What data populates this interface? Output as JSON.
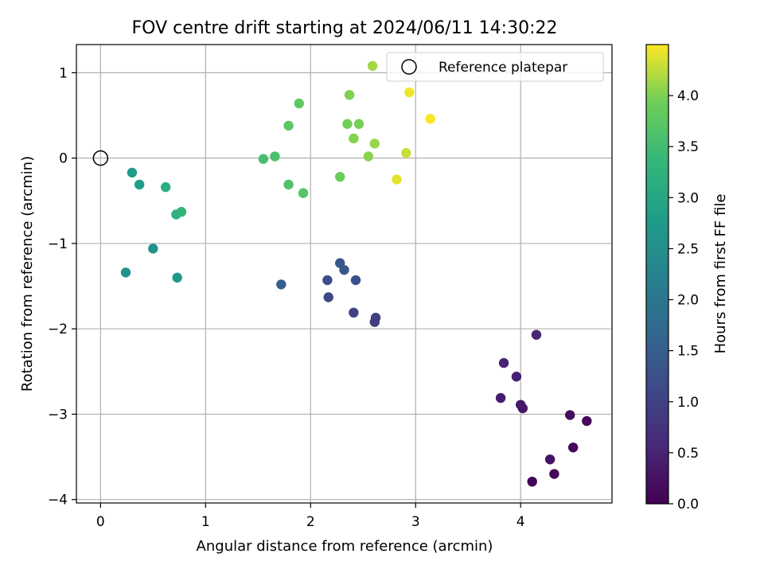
{
  "chart_data": {
    "type": "scatter",
    "title": "FOV centre drift starting at 2024/06/11 14:30:22",
    "xlabel": "Angular distance from reference (arcmin)",
    "ylabel": "Rotation from reference (arcmin)",
    "xlim": [
      -0.23,
      4.87
    ],
    "ylim": [
      -4.04,
      1.33
    ],
    "xticks": [
      0,
      1,
      2,
      3,
      4
    ],
    "yticks": [
      -4,
      -3,
      -2,
      -1,
      0,
      1
    ],
    "xtick_labels": [
      "0",
      "1",
      "2",
      "3",
      "4"
    ],
    "ytick_labels": [
      "−4",
      "−3",
      "−2",
      "−1",
      "0",
      "1"
    ],
    "grid": true,
    "legend": {
      "position": "top-right",
      "entries": [
        "Reference platepar"
      ]
    },
    "reference_point": {
      "x": 0,
      "y": 0,
      "marker": "open-circle"
    },
    "colormap": "viridis",
    "colorbar": {
      "label": "Hours from first FF file",
      "range": [
        0.0,
        4.5
      ],
      "ticks": [
        0.0,
        0.5,
        1.0,
        1.5,
        2.0,
        2.5,
        3.0,
        3.5,
        4.0
      ],
      "tick_labels": [
        "0.0",
        "0.5",
        "1.0",
        "1.5",
        "2.0",
        "2.5",
        "3.0",
        "3.5",
        "4.0"
      ]
    },
    "points": [
      {
        "x": 4.11,
        "y": -3.79,
        "hours": 0.05
      },
      {
        "x": 4.32,
        "y": -3.7,
        "hours": 0.08
      },
      {
        "x": 4.5,
        "y": -3.39,
        "hours": 0.1
      },
      {
        "x": 4.63,
        "y": -3.08,
        "hours": 0.13
      },
      {
        "x": 4.47,
        "y": -3.01,
        "hours": 0.17
      },
      {
        "x": 4.28,
        "y": -3.53,
        "hours": 0.27
      },
      {
        "x": 4.02,
        "y": -2.93,
        "hours": 0.3
      },
      {
        "x": 4.0,
        "y": -2.89,
        "hours": 0.35
      },
      {
        "x": 3.81,
        "y": -2.81,
        "hours": 0.4
      },
      {
        "x": 3.96,
        "y": -2.56,
        "hours": 0.45
      },
      {
        "x": 3.84,
        "y": -2.4,
        "hours": 0.5
      },
      {
        "x": 4.15,
        "y": -2.07,
        "hours": 0.55
      },
      {
        "x": 2.61,
        "y": -1.92,
        "hours": 0.9
      },
      {
        "x": 2.62,
        "y": -1.87,
        "hours": 0.95
      },
      {
        "x": 2.41,
        "y": -1.81,
        "hours": 1.0
      },
      {
        "x": 2.17,
        "y": -1.63,
        "hours": 1.1
      },
      {
        "x": 2.16,
        "y": -1.43,
        "hours": 1.2
      },
      {
        "x": 2.43,
        "y": -1.43,
        "hours": 1.25
      },
      {
        "x": 2.32,
        "y": -1.31,
        "hours": 1.35
      },
      {
        "x": 2.28,
        "y": -1.23,
        "hours": 1.4
      },
      {
        "x": 1.72,
        "y": -1.48,
        "hours": 1.55
      },
      {
        "x": 0.24,
        "y": -1.34,
        "hours": 2.55
      },
      {
        "x": 0.5,
        "y": -1.06,
        "hours": 2.6
      },
      {
        "x": 0.73,
        "y": -1.4,
        "hours": 2.7
      },
      {
        "x": 0.3,
        "y": -0.17,
        "hours": 2.8
      },
      {
        "x": 0.37,
        "y": -0.31,
        "hours": 2.85
      },
      {
        "x": 0.62,
        "y": -0.34,
        "hours": 3.15
      },
      {
        "x": 0.72,
        "y": -0.66,
        "hours": 3.25
      },
      {
        "x": 0.77,
        "y": -0.63,
        "hours": 3.3
      },
      {
        "x": 1.55,
        "y": -0.01,
        "hours": 3.55
      },
      {
        "x": 1.66,
        "y": 0.02,
        "hours": 3.6
      },
      {
        "x": 1.79,
        "y": -0.31,
        "hours": 3.65
      },
      {
        "x": 1.93,
        "y": -0.41,
        "hours": 3.7
      },
      {
        "x": 1.79,
        "y": 0.38,
        "hours": 3.75
      },
      {
        "x": 1.89,
        "y": 0.64,
        "hours": 3.8
      },
      {
        "x": 2.28,
        "y": -0.22,
        "hours": 3.9
      },
      {
        "x": 2.35,
        "y": 0.4,
        "hours": 3.95
      },
      {
        "x": 2.46,
        "y": 0.4,
        "hours": 3.97
      },
      {
        "x": 2.37,
        "y": 0.74,
        "hours": 4.0
      },
      {
        "x": 2.41,
        "y": 0.23,
        "hours": 4.02
      },
      {
        "x": 2.55,
        "y": 0.02,
        "hours": 4.05
      },
      {
        "x": 2.61,
        "y": 0.17,
        "hours": 4.1
      },
      {
        "x": 2.59,
        "y": 1.08,
        "hours": 4.15
      },
      {
        "x": 2.91,
        "y": 0.06,
        "hours": 4.3
      },
      {
        "x": 2.82,
        "y": -0.25,
        "hours": 4.4
      },
      {
        "x": 2.94,
        "y": 0.77,
        "hours": 4.45
      },
      {
        "x": 3.14,
        "y": 0.46,
        "hours": 4.48
      }
    ]
  }
}
